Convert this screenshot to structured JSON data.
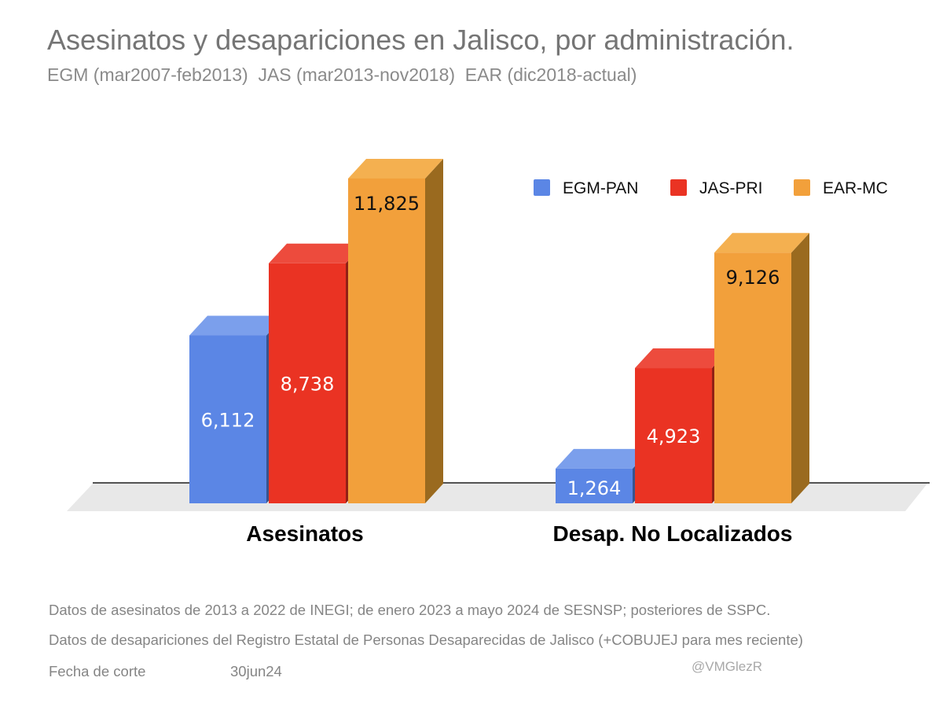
{
  "chart_data": {
    "type": "bar",
    "title": "Asesinatos y desapariciones en Jalisco, por administración.",
    "subtitle": "EGM (mar2007-feb2013)  JAS (mar2013-nov2018)  EAR (dic2018-actual)",
    "categories": [
      "Asesinatos",
      "Desap. No Localizados"
    ],
    "series": [
      {
        "name": "EGM-PAN",
        "values": [
          6112,
          1264
        ],
        "labels": [
          "6,112",
          "1,264"
        ],
        "color": "#5b86e5",
        "top_color": "#7b9fec",
        "label_color": "#ffffff"
      },
      {
        "name": "JAS-PRI",
        "values": [
          8738,
          4923
        ],
        "labels": [
          "8,738",
          "4,923"
        ],
        "color": "#ea3323",
        "top_color": "#ed4b3d",
        "label_color": "#ffffff"
      },
      {
        "name": "EAR-MC",
        "values": [
          11825,
          9126
        ],
        "labels": [
          "11,825",
          "9,126"
        ],
        "color": "#f2a03b",
        "top_color": "#f4b050",
        "side_color": "#9a6a1f",
        "label_color": "#111111"
      }
    ],
    "legend_position": "top-right",
    "grid": false,
    "ylim": [
      0,
      12000
    ]
  },
  "notes": [
    "Datos de asesinatos de 2013 a 2022 de INEGI; de enero 2023 a mayo 2024 de SESNSP; posteriores de SSPC.",
    "Datos de desapariciones del Registro Estatal de Personas Desaparecidas de Jalisco (+COBUJEJ para mes reciente)"
  ],
  "cutoff_label": "Fecha de corte",
  "cutoff_date": "30jun24",
  "credit": "@VMGlezR"
}
